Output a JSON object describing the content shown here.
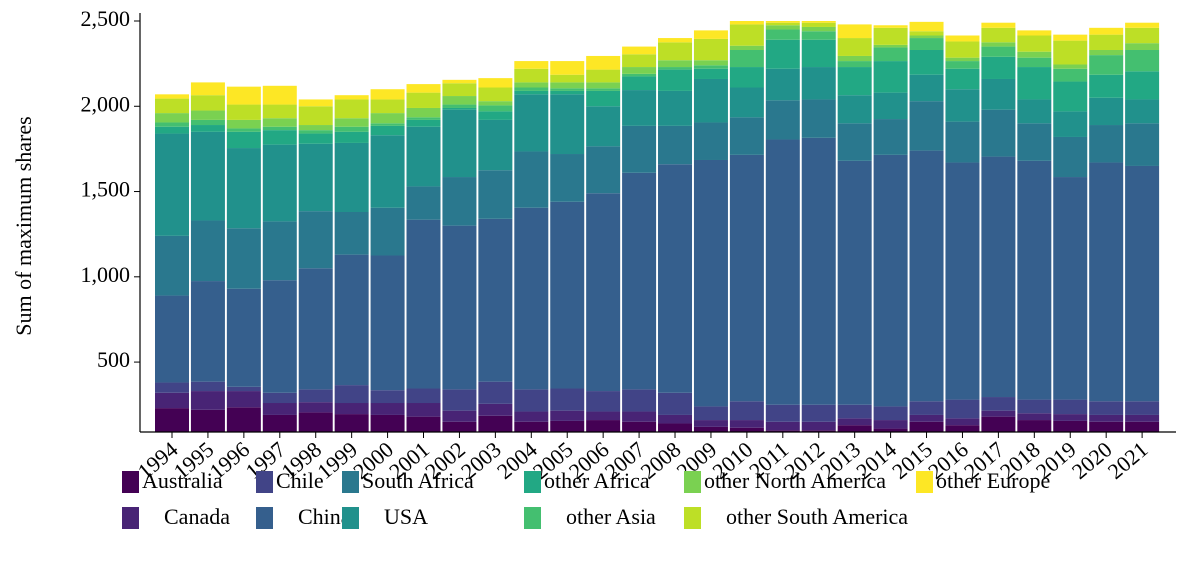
{
  "chart_data": {
    "type": "stacked-bar",
    "y_label": "Sum of maximum shares",
    "categories": [
      "1994",
      "1995",
      "1996",
      "1997",
      "1998",
      "1999",
      "2000",
      "2001",
      "2002",
      "2003",
      "2004",
      "2005",
      "2006",
      "2007",
      "2008",
      "2009",
      "2010",
      "2011",
      "2012",
      "2013",
      "2014",
      "2015",
      "2016",
      "2017",
      "2018",
      "2019",
      "2020",
      "2021"
    ],
    "ylim": [
      90,
      2500
    ],
    "yticks": [
      500,
      {
        "value": 1000,
        "label": "1,000"
      },
      {
        "value": 1500,
        "label": "1,500"
      },
      {
        "value": 2000,
        "label": "2,000"
      },
      {
        "value": 2500,
        "label": "2,500"
      }
    ],
    "series": [
      {
        "name": "Australia",
        "color": "#440154",
        "values": [
          230,
          220,
          235,
          190,
          205,
          195,
          190,
          180,
          150,
          185,
          150,
          155,
          160,
          150,
          140,
          120,
          115,
          100,
          100,
          130,
          110,
          150,
          130,
          180,
          160,
          155,
          150,
          150
        ]
      },
      {
        "name": "Canada",
        "color": "#482475",
        "values": [
          90,
          110,
          95,
          70,
          60,
          65,
          70,
          80,
          65,
          70,
          60,
          60,
          50,
          60,
          50,
          40,
          45,
          50,
          50,
          40,
          50,
          40,
          40,
          35,
          40,
          40,
          40,
          40
        ]
      },
      {
        "name": "Chile",
        "color": "#414487",
        "values": [
          60,
          55,
          25,
          60,
          75,
          105,
          75,
          85,
          125,
          130,
          130,
          130,
          120,
          130,
          130,
          80,
          110,
          100,
          100,
          80,
          80,
          80,
          110,
          80,
          80,
          85,
          80,
          80
        ]
      },
      {
        "name": "China",
        "color": "#355f8d",
        "values": [
          510,
          590,
          575,
          660,
          710,
          765,
          790,
          990,
          960,
          955,
          1065,
          1095,
          1160,
          1270,
          1340,
          1445,
          1445,
          1555,
          1565,
          1430,
          1475,
          1470,
          1390,
          1410,
          1400,
          1305,
          1400,
          1380
        ]
      },
      {
        "name": "South Africa",
        "color": "#2a788e",
        "values": [
          350,
          355,
          355,
          345,
          335,
          250,
          280,
          195,
          285,
          285,
          330,
          280,
          275,
          275,
          225,
          220,
          220,
          230,
          225,
          220,
          210,
          290,
          240,
          275,
          220,
          235,
          220,
          250
        ]
      },
      {
        "name": "USA",
        "color": "#21918c",
        "values": [
          600,
          520,
          470,
          450,
          395,
          405,
          425,
          350,
          395,
          295,
          335,
          350,
          235,
          210,
          205,
          255,
          175,
          185,
          190,
          165,
          155,
          155,
          190,
          180,
          140,
          150,
          160,
          140
        ]
      },
      {
        "name": "other Africa",
        "color": "#22a884",
        "values": [
          40,
          40,
          95,
          85,
          60,
          65,
          55,
          40,
          10,
          50,
          20,
          20,
          90,
          80,
          125,
          60,
          120,
          170,
          160,
          165,
          185,
          145,
          120,
          130,
          190,
          175,
          135,
          165
        ]
      },
      {
        "name": "other Asia",
        "color": "#44bf70",
        "values": [
          25,
          30,
          20,
          20,
          20,
          30,
          15,
          15,
          20,
          35,
          20,
          15,
          15,
          15,
          15,
          20,
          100,
          60,
          50,
          35,
          80,
          70,
          45,
          60,
          55,
          75,
          115,
          125
        ]
      },
      {
        "name": "other North America",
        "color": "#7ad151",
        "values": [
          55,
          55,
          50,
          50,
          30,
          50,
          60,
          55,
          50,
          25,
          30,
          35,
          35,
          40,
          40,
          30,
          25,
          25,
          25,
          30,
          15,
          15,
          20,
          25,
          35,
          25,
          30,
          40
        ]
      },
      {
        "name": "other South America",
        "color": "#bddf26",
        "values": [
          85,
          90,
          90,
          80,
          110,
          110,
          80,
          90,
          75,
          80,
          80,
          45,
          75,
          75,
          105,
          125,
          125,
          15,
          25,
          105,
          100,
          25,
          95,
          85,
          95,
          140,
          90,
          90
        ]
      },
      {
        "name": "other Europe",
        "color": "#fde725",
        "values": [
          25,
          75,
          105,
          110,
          40,
          25,
          60,
          50,
          20,
          55,
          45,
          80,
          80,
          45,
          25,
          50,
          20,
          10,
          10,
          80,
          15,
          55,
          35,
          30,
          30,
          35,
          40,
          30
        ]
      }
    ]
  }
}
